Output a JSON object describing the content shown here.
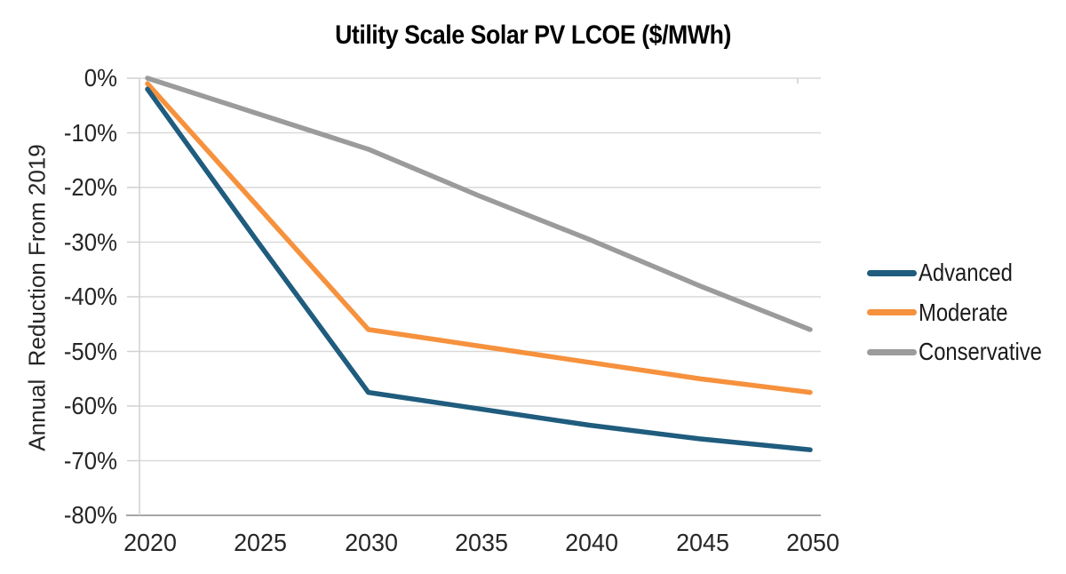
{
  "title": "Utility Scale Solar PV LCOE ($/MWh)",
  "colors": {
    "advanced": "#1F5C7E",
    "moderate": "#F6913D",
    "conservative": "#9B9B9B",
    "gridline": "#D9D9D9",
    "bottom_axis": "#A6A6A6",
    "left_axis": "#D0D0D0",
    "tick_text": "#262626",
    "title_text": "#000000"
  },
  "chart_data": {
    "type": "line",
    "title": "Utility Scale Solar PV LCOE ($/MWh)",
    "xlabel": "",
    "ylabel": "Annual  Reduction From 2019",
    "x": [
      2020,
      2025,
      2030,
      2035,
      2040,
      2045,
      2050
    ],
    "x_tick_labels": [
      "2020",
      "2025",
      "2030",
      "2035",
      "2040",
      "2045",
      "2050"
    ],
    "y_ticks": [
      0,
      -10,
      -20,
      -30,
      -40,
      -50,
      -60,
      -70,
      -80
    ],
    "y_tick_labels": [
      "0%",
      "-10%",
      "-20%",
      "-30%",
      "-40%",
      "-50%",
      "-60%",
      "-70%",
      "-80%"
    ],
    "ylim": [
      -80,
      0
    ],
    "grid": "horizontal",
    "legend_position": "right",
    "series": [
      {
        "name": "Advanced",
        "color": "#1F5C7E",
        "values": [
          -2,
          -30,
          -57.5,
          -60.5,
          -63.5,
          -66,
          -68
        ]
      },
      {
        "name": "Moderate",
        "color": "#F6913D",
        "values": [
          -1,
          -23.5,
          -46,
          -49,
          -52,
          -55,
          -57.5
        ]
      },
      {
        "name": "Conservative",
        "color": "#9B9B9B",
        "values": [
          0,
          -6.5,
          -13,
          -21.5,
          -29.5,
          -38,
          -46
        ]
      }
    ]
  }
}
